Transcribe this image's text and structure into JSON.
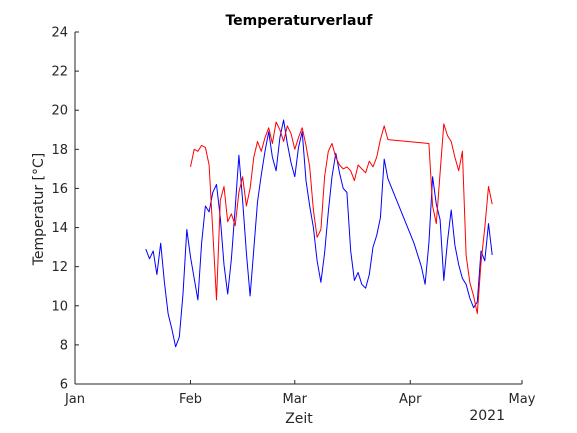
{
  "chart_data": {
    "type": "line",
    "title": "Temperaturverlauf",
    "xlabel": "Zeit",
    "ylabel": "Temperatur [°C]",
    "x_year_label": "2021",
    "x_scale": "date",
    "xlim": [
      "2021-01-01",
      "2021-05-01"
    ],
    "ylim": [
      6,
      24
    ],
    "x_ticks": [
      {
        "date": "2021-01-01",
        "label": "Jan"
      },
      {
        "date": "2021-02-01",
        "label": "Feb"
      },
      {
        "date": "2021-03-01",
        "label": "Mar"
      },
      {
        "date": "2021-04-01",
        "label": "Apr"
      },
      {
        "date": "2021-05-01",
        "label": "May"
      }
    ],
    "y_ticks": [
      6,
      8,
      10,
      12,
      14,
      16,
      18,
      20,
      22,
      24
    ],
    "grid": false,
    "legend": "none",
    "series": [
      {
        "color": "#0000ff",
        "points": [
          [
            "2021-01-20",
            12.9
          ],
          [
            "2021-01-21",
            12.4
          ],
          [
            "2021-01-22",
            12.8
          ],
          [
            "2021-01-23",
            11.6
          ],
          [
            "2021-01-24",
            13.2
          ],
          [
            "2021-01-25",
            11.2
          ],
          [
            "2021-01-26",
            9.6
          ],
          [
            "2021-01-27",
            8.8
          ],
          [
            "2021-01-28",
            7.9
          ],
          [
            "2021-01-29",
            8.4
          ],
          [
            "2021-01-30",
            10.6
          ],
          [
            "2021-01-31",
            13.9
          ],
          [
            "2021-02-01",
            12.5
          ],
          [
            "2021-02-02",
            11.4
          ],
          [
            "2021-02-03",
            10.3
          ],
          [
            "2021-02-04",
            13.2
          ],
          [
            "2021-02-05",
            15.1
          ],
          [
            "2021-02-06",
            14.8
          ],
          [
            "2021-02-07",
            15.8
          ],
          [
            "2021-02-08",
            16.2
          ],
          [
            "2021-02-09",
            14.5
          ],
          [
            "2021-02-10",
            12.1
          ],
          [
            "2021-02-11",
            10.6
          ],
          [
            "2021-02-12",
            12.4
          ],
          [
            "2021-02-13",
            15.0
          ],
          [
            "2021-02-14",
            17.7
          ],
          [
            "2021-02-15",
            15.4
          ],
          [
            "2021-02-16",
            12.7
          ],
          [
            "2021-02-17",
            10.5
          ],
          [
            "2021-02-18",
            12.9
          ],
          [
            "2021-02-19",
            15.3
          ],
          [
            "2021-02-20",
            16.7
          ],
          [
            "2021-02-21",
            17.9
          ],
          [
            "2021-02-22",
            18.9
          ],
          [
            "2021-02-23",
            17.6
          ],
          [
            "2021-02-24",
            16.9
          ],
          [
            "2021-02-25",
            18.6
          ],
          [
            "2021-02-26",
            19.5
          ],
          [
            "2021-02-27",
            18.3
          ],
          [
            "2021-02-28",
            17.3
          ],
          [
            "2021-03-01",
            16.6
          ],
          [
            "2021-03-02",
            18.1
          ],
          [
            "2021-03-03",
            18.9
          ],
          [
            "2021-03-04",
            16.4
          ],
          [
            "2021-03-05",
            15.1
          ],
          [
            "2021-03-06",
            14.0
          ],
          [
            "2021-03-07",
            12.3
          ],
          [
            "2021-03-08",
            11.2
          ],
          [
            "2021-03-09",
            12.7
          ],
          [
            "2021-03-10",
            14.8
          ],
          [
            "2021-03-11",
            16.6
          ],
          [
            "2021-03-12",
            17.8
          ],
          [
            "2021-03-13",
            16.8
          ],
          [
            "2021-03-14",
            16.0
          ],
          [
            "2021-03-15",
            15.8
          ],
          [
            "2021-03-16",
            12.8
          ],
          [
            "2021-03-17",
            11.3
          ],
          [
            "2021-03-18",
            11.7
          ],
          [
            "2021-03-19",
            11.1
          ],
          [
            "2021-03-20",
            10.9
          ],
          [
            "2021-03-21",
            11.6
          ],
          [
            "2021-03-22",
            13.0
          ],
          [
            "2021-03-23",
            13.6
          ],
          [
            "2021-03-24",
            14.5
          ],
          [
            "2021-03-25",
            17.5
          ],
          [
            "2021-03-26",
            16.5
          ],
          [
            "2021-04-02",
            13.2
          ],
          [
            "2021-04-04",
            12.0
          ],
          [
            "2021-04-05",
            11.1
          ],
          [
            "2021-04-06",
            13.2
          ],
          [
            "2021-04-07",
            16.6
          ],
          [
            "2021-04-08",
            15.2
          ],
          [
            "2021-04-09",
            14.4
          ],
          [
            "2021-04-10",
            11.3
          ],
          [
            "2021-04-11",
            13.3
          ],
          [
            "2021-04-12",
            14.9
          ],
          [
            "2021-04-13",
            13.1
          ],
          [
            "2021-04-14",
            12.1
          ],
          [
            "2021-04-15",
            11.4
          ],
          [
            "2021-04-16",
            11.1
          ],
          [
            "2021-04-17",
            10.4
          ],
          [
            "2021-04-18",
            9.9
          ],
          [
            "2021-04-19",
            10.2
          ],
          [
            "2021-04-20",
            12.8
          ],
          [
            "2021-04-21",
            12.3
          ],
          [
            "2021-04-22",
            14.2
          ],
          [
            "2021-04-23",
            12.6
          ]
        ]
      },
      {
        "color": "#ff0000",
        "points": [
          [
            "2021-02-01",
            17.1
          ],
          [
            "2021-02-02",
            18.0
          ],
          [
            "2021-02-03",
            17.9
          ],
          [
            "2021-02-04",
            18.2
          ],
          [
            "2021-02-05",
            18.1
          ],
          [
            "2021-02-06",
            17.2
          ],
          [
            "2021-02-07",
            13.8
          ],
          [
            "2021-02-08",
            10.3
          ],
          [
            "2021-02-09",
            15.4
          ],
          [
            "2021-02-10",
            16.1
          ],
          [
            "2021-02-11",
            14.3
          ],
          [
            "2021-02-12",
            14.7
          ],
          [
            "2021-02-13",
            14.1
          ],
          [
            "2021-02-14",
            15.8
          ],
          [
            "2021-02-15",
            16.6
          ],
          [
            "2021-02-16",
            15.1
          ],
          [
            "2021-02-17",
            16.0
          ],
          [
            "2021-02-18",
            17.6
          ],
          [
            "2021-02-19",
            18.4
          ],
          [
            "2021-02-20",
            17.9
          ],
          [
            "2021-02-21",
            18.6
          ],
          [
            "2021-02-22",
            19.1
          ],
          [
            "2021-02-23",
            18.3
          ],
          [
            "2021-02-24",
            19.4
          ],
          [
            "2021-02-25",
            19.0
          ],
          [
            "2021-02-26",
            18.4
          ],
          [
            "2021-02-27",
            19.2
          ],
          [
            "2021-02-28",
            18.8
          ],
          [
            "2021-03-01",
            18.0
          ],
          [
            "2021-03-02",
            18.6
          ],
          [
            "2021-03-03",
            19.1
          ],
          [
            "2021-03-04",
            18.2
          ],
          [
            "2021-03-05",
            17.1
          ],
          [
            "2021-03-06",
            14.9
          ],
          [
            "2021-03-07",
            13.5
          ],
          [
            "2021-03-08",
            13.9
          ],
          [
            "2021-03-09",
            16.6
          ],
          [
            "2021-03-10",
            17.9
          ],
          [
            "2021-03-11",
            18.3
          ],
          [
            "2021-03-12",
            17.6
          ],
          [
            "2021-03-13",
            17.2
          ],
          [
            "2021-03-14",
            17.0
          ],
          [
            "2021-03-15",
            17.1
          ],
          [
            "2021-03-16",
            16.9
          ],
          [
            "2021-03-17",
            16.4
          ],
          [
            "2021-03-18",
            17.2
          ],
          [
            "2021-03-19",
            17.0
          ],
          [
            "2021-03-20",
            16.8
          ],
          [
            "2021-03-21",
            17.4
          ],
          [
            "2021-03-22",
            17.1
          ],
          [
            "2021-03-23",
            17.6
          ],
          [
            "2021-03-24",
            18.5
          ],
          [
            "2021-03-25",
            19.2
          ],
          [
            "2021-03-26",
            18.5
          ],
          [
            "2021-04-06",
            18.3
          ],
          [
            "2021-04-07",
            15.1
          ],
          [
            "2021-04-08",
            14.2
          ],
          [
            "2021-04-09",
            16.8
          ],
          [
            "2021-04-10",
            19.3
          ],
          [
            "2021-04-11",
            18.7
          ],
          [
            "2021-04-12",
            18.4
          ],
          [
            "2021-04-13",
            17.6
          ],
          [
            "2021-04-14",
            16.9
          ],
          [
            "2021-04-15",
            17.9
          ],
          [
            "2021-04-16",
            12.6
          ],
          [
            "2021-04-17",
            11.2
          ],
          [
            "2021-04-18",
            10.5
          ],
          [
            "2021-04-19",
            9.6
          ],
          [
            "2021-04-20",
            12.2
          ],
          [
            "2021-04-21",
            14.0
          ],
          [
            "2021-04-22",
            16.1
          ],
          [
            "2021-04-23",
            15.2
          ]
        ]
      }
    ]
  }
}
